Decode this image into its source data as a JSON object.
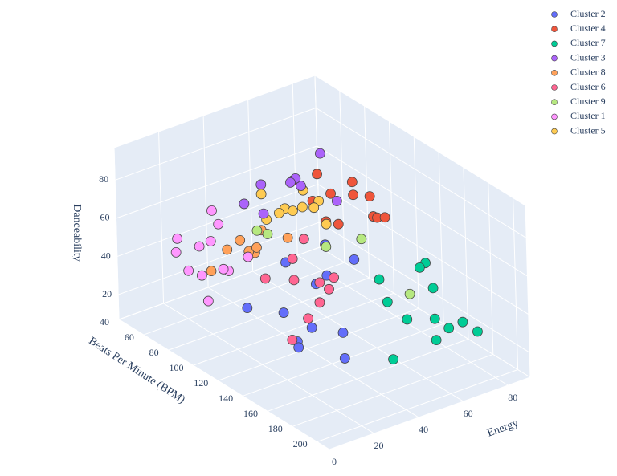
{
  "chart_data": {
    "type": "scatter3d",
    "x_label": "Beats Per Minute (BPM)",
    "y_label": "Energy",
    "z_label": "Danceability",
    "xlim": [
      40,
      210
    ],
    "ylim": [
      0,
      90
    ],
    "zlim": [
      7,
      97
    ],
    "xticks": [
      40,
      60,
      80,
      100,
      120,
      140,
      160,
      180,
      200
    ],
    "yticks": [
      0,
      20,
      40,
      60,
      80
    ],
    "zticks": [
      20,
      40,
      60,
      80
    ],
    "grid": true,
    "legend": "top-right",
    "series": [
      {
        "name": "Cluster 2",
        "color": "#636efa",
        "x": [
          120,
          95,
          140,
          110,
          128,
          150,
          100,
          135,
          118,
          160,
          105,
          125
        ],
        "y": [
          30,
          45,
          25,
          55,
          38,
          20,
          60,
          48,
          15,
          35,
          70,
          42
        ],
        "z": [
          30,
          40,
          25,
          35,
          22,
          28,
          45,
          18,
          38,
          20,
          35,
          42
        ]
      },
      {
        "name": "Cluster 4",
        "color": "#ef553b",
        "x": [
          100,
          115,
          125,
          95,
          130,
          110,
          120,
          105,
          135,
          90,
          118,
          128
        ],
        "y": [
          55,
          65,
          70,
          60,
          50,
          75,
          62,
          58,
          68,
          52,
          72,
          48
        ],
        "z": [
          70,
          75,
          65,
          80,
          72,
          68,
          85,
          60,
          70,
          78,
          62,
          88
        ]
      },
      {
        "name": "Cluster 7",
        "color": "#00cc96",
        "x": [
          150,
          170,
          160,
          180,
          145,
          175,
          165,
          155,
          185,
          140,
          190,
          172
        ],
        "y": [
          60,
          70,
          75,
          65,
          80,
          55,
          85,
          72,
          68,
          62,
          78,
          50
        ],
        "z": [
          35,
          30,
          40,
          25,
          45,
          38,
          20,
          50,
          32,
          42,
          28,
          18
        ]
      },
      {
        "name": "Cluster 3",
        "color": "#ab63fa",
        "x": [
          95,
          100,
          110,
          90,
          120,
          105,
          115,
          98
        ],
        "y": [
          35,
          50,
          40,
          30,
          55,
          45,
          25,
          60
        ],
        "z": [
          85,
          80,
          90,
          75,
          78,
          88,
          82,
          92
        ]
      },
      {
        "name": "Cluster 8",
        "color": "#ffa15a",
        "x": [
          75,
          85,
          80,
          90,
          70,
          95,
          88,
          78
        ],
        "y": [
          30,
          40,
          20,
          35,
          45,
          25,
          50,
          38
        ],
        "z": [
          45,
          55,
          40,
          50,
          35,
          60,
          48,
          42
        ]
      },
      {
        "name": "Cluster 6",
        "color": "#ff6692",
        "x": [
          120,
          130,
          110,
          140,
          125,
          115,
          135,
          105,
          145,
          128
        ],
        "y": [
          35,
          45,
          40,
          30,
          50,
          25,
          38,
          48,
          20,
          42
        ],
        "z": [
          45,
          40,
          50,
          35,
          42,
          48,
          38,
          55,
          30,
          44
        ]
      },
      {
        "name": "Cluster 9",
        "color": "#b6e880",
        "x": [
          90,
          130,
          110,
          150,
          100
        ],
        "y": [
          40,
          60,
          55,
          70,
          30
        ],
        "z": [
          55,
          60,
          50,
          35,
          65
        ]
      },
      {
        "name": "Cluster 1",
        "color": "#ff97ff",
        "x": [
          70,
          80,
          90,
          75,
          85,
          95,
          65,
          100,
          78,
          88,
          72,
          92
        ],
        "y": [
          10,
          15,
          20,
          8,
          25,
          12,
          18,
          5,
          22,
          14,
          28,
          30
        ],
        "z": [
          50,
          55,
          45,
          60,
          40,
          65,
          35,
          52,
          70,
          30,
          58,
          48
        ]
      },
      {
        "name": "Cluster 5",
        "color": "#fecb52",
        "x": [
          100,
          110,
          95,
          120,
          105,
          115,
          90,
          125,
          108,
          98
        ],
        "y": [
          40,
          45,
          35,
          50,
          55,
          38,
          48,
          42,
          30,
          52
        ],
        "z": [
          70,
          75,
          80,
          68,
          72,
          78,
          65,
          82,
          74,
          76
        ]
      }
    ]
  }
}
